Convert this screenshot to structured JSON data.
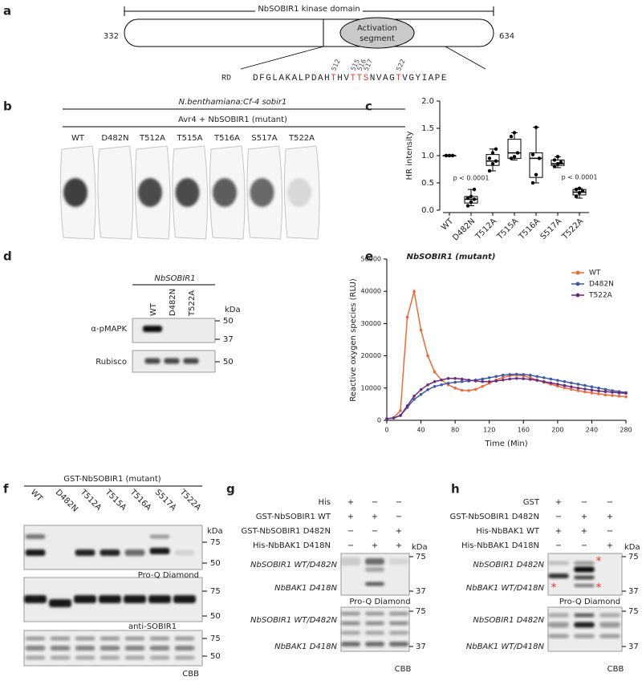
{
  "panels": {
    "a": {
      "label": "a",
      "title": "NbSOBIR1 kinase domain",
      "start": "332",
      "end": "634",
      "activation": [
        "Activation",
        "segment"
      ],
      "motif": "RD",
      "highlight_color": "#e03a2f",
      "sequence": [
        {
          "text": "DFGLAKALPDAH"
        },
        {
          "text": "T",
          "highlight": true,
          "sites": [
            "512"
          ]
        },
        {
          "text": "HV"
        },
        {
          "text": "TTS",
          "highlight": true,
          "sites": [
            "515",
            "516",
            "517"
          ]
        },
        {
          "text": "NVAG"
        },
        {
          "text": "T",
          "highlight": true,
          "sites": [
            "522"
          ]
        },
        {
          "text": "VGYIAPE"
        }
      ]
    },
    "b": {
      "label": "b",
      "genotype": "N.benthamiana:Cf-4 sobir1",
      "treatment": "Avr4 + NbSOBIR1 (mutant)",
      "lanes": [
        "WT",
        "D482N",
        "T512A",
        "T515A",
        "T516A",
        "S517A",
        "T522A"
      ]
    },
    "c": {
      "label": "c"
    },
    "d": {
      "label": "d",
      "construct": "NbSOBIR1",
      "lanes": [
        "WT",
        "D482N",
        "T522A"
      ],
      "kda": "kDa",
      "blots": [
        {
          "antibody": "α-pMAPK",
          "markers": [
            "50",
            "37"
          ]
        },
        {
          "antibody": "Rubisco",
          "markers": [
            "50"
          ]
        }
      ]
    },
    "e": {
      "label": "e"
    },
    "f": {
      "label": "f",
      "construct": "GST-NbSOBIR1 (mutant)",
      "lanes": [
        "WT",
        "D482N",
        "T512A",
        "T515A",
        "T516A",
        "S517A",
        "T522A"
      ],
      "kda": "kDa",
      "blots": [
        {
          "markers": [
            "75",
            "50"
          ],
          "stain": "Pro-Q Diamond"
        },
        {
          "markers": [
            "75",
            "50"
          ],
          "stain": "anti-SOBIR1"
        },
        {
          "markers": [
            "75",
            "50"
          ],
          "stain": "CBB"
        }
      ]
    },
    "g": {
      "label": "g",
      "kda": "kDa",
      "rows": [
        {
          "label": "His",
          "signs": [
            "+",
            "−",
            "−"
          ]
        },
        {
          "label": "GST-NbSOBIR1 WT",
          "signs": [
            "+",
            "+",
            "−"
          ]
        },
        {
          "label": "GST-NbSOBIR1 D482N",
          "signs": [
            "−",
            "−",
            "+"
          ]
        },
        {
          "label": "His-NbBAK1 D418N",
          "signs": [
            "−",
            "+",
            "+"
          ]
        }
      ],
      "blots": [
        {
          "bands": [
            "NbSOBIR1 WT/D482N",
            "NbBAK1 D418N"
          ],
          "markers": [
            "75",
            "37"
          ],
          "stain": "Pro-Q Diamond"
        },
        {
          "bands": [
            "NbSOBIR1 WT/D482N",
            "NbBAK1 D418N"
          ],
          "markers": [
            "75",
            "37"
          ],
          "stain": "CBB"
        }
      ]
    },
    "h": {
      "label": "h",
      "kda": "kDa",
      "asterisks": [
        "*",
        "*",
        "*"
      ],
      "asterisk_color": "#e03a2f",
      "rows": [
        {
          "label": "GST",
          "signs": [
            "+",
            "−",
            "−"
          ]
        },
        {
          "label": "GST-NbSOBIR1 D482N",
          "signs": [
            "−",
            "+",
            "+"
          ]
        },
        {
          "label": "His-NbBAK1 WT",
          "signs": [
            "+",
            "+",
            "−"
          ]
        },
        {
          "label": "His-NbBAK1 D418N",
          "signs": [
            "−",
            "−",
            "+"
          ]
        }
      ],
      "blots": [
        {
          "bands": [
            "NbSOBIR1 D482N",
            "NbBAK1 WT/D418N"
          ],
          "markers": [
            "75",
            "37"
          ],
          "stain": "Pro-Q Diamond"
        },
        {
          "bands": [
            "NbSOBIR1 D482N",
            "NbBAK1 WT/D418N"
          ],
          "markers": [
            "75",
            "37"
          ],
          "stain": "CBB"
        }
      ]
    }
  },
  "chart_data": [
    {
      "type": "box",
      "ylabel": "HR intensity",
      "color": "#000000",
      "categories": [
        "WT",
        "D482N",
        "T512A",
        "T515A",
        "T516A",
        "S517A",
        "T522A"
      ],
      "boxes": [
        {
          "min": 1,
          "q1": 1,
          "median": 1,
          "q3": 1,
          "max": 1,
          "points": [
            1,
            1,
            1,
            1,
            1,
            1
          ]
        },
        {
          "min": 0.08,
          "q1": 0.13,
          "median": 0.2,
          "q3": 0.25,
          "max": 0.38,
          "points": [
            0.08,
            0.15,
            0.2,
            0.22,
            0.25,
            0.38
          ],
          "annotation": "p < 0.0001"
        },
        {
          "min": 0.72,
          "q1": 0.82,
          "median": 0.9,
          "q3": 1.02,
          "max": 1.12,
          "points": [
            0.72,
            0.85,
            0.9,
            0.95,
            1.05,
            1.12
          ]
        },
        {
          "min": 0.92,
          "q1": 0.95,
          "median": 1.05,
          "q3": 1.3,
          "max": 1.42,
          "points": [
            0.95,
            0.98,
            1.05,
            1.35,
            1.42
          ]
        },
        {
          "min": 0.5,
          "q1": 0.6,
          "median": 0.95,
          "q3": 1.05,
          "max": 1.52,
          "points": [
            0.5,
            0.65,
            0.95,
            1.02,
            1.52
          ]
        },
        {
          "min": 0.78,
          "q1": 0.82,
          "median": 0.85,
          "q3": 0.92,
          "max": 0.98,
          "points": [
            0.8,
            0.85,
            0.88,
            0.92,
            0.98
          ]
        },
        {
          "min": 0.22,
          "q1": 0.28,
          "median": 0.33,
          "q3": 0.38,
          "max": 0.4,
          "points": [
            0.25,
            0.32,
            0.35,
            0.38,
            0.4
          ],
          "annotation": "p < 0.0001"
        }
      ],
      "ylim": [
        0,
        2
      ],
      "yticks": [
        {
          "value": 0,
          "label": "0.0"
        },
        0.5,
        {
          "value": 1,
          "label": "1.0"
        },
        1.5,
        {
          "value": 2,
          "label": "2.0"
        }
      ]
    },
    {
      "type": "line",
      "title": "NbSOBIR1 (mutant)",
      "ylabel": "Reactive oxygen species (RLU)",
      "xlabel": "Time (Min)",
      "legend": "upper right",
      "x": [
        0,
        8,
        16,
        24,
        32,
        40,
        48,
        56,
        64,
        72,
        80,
        88,
        96,
        104,
        112,
        120,
        128,
        136,
        144,
        152,
        160,
        168,
        176,
        184,
        192,
        200,
        208,
        216,
        224,
        232,
        240,
        248,
        256,
        264,
        272,
        280
      ],
      "series": [
        {
          "name": "WT",
          "color": "#ea6a3c",
          "values": [
            500,
            800,
            3000,
            32000,
            40000,
            28000,
            20000,
            15000,
            12500,
            11000,
            10000,
            9300,
            9200,
            9600,
            10500,
            11500,
            12500,
            13300,
            13800,
            14000,
            13800,
            13200,
            12500,
            11800,
            11200,
            10600,
            10100,
            9600,
            9200,
            8800,
            8500,
            8200,
            7900,
            7700,
            7500,
            7300
          ]
        },
        {
          "name": "D482N",
          "color": "#3c5aa8",
          "values": [
            500,
            700,
            1500,
            4000,
            6500,
            8000,
            9500,
            10500,
            11000,
            11500,
            11800,
            12000,
            12200,
            12500,
            12800,
            13200,
            13600,
            14000,
            14200,
            14300,
            14200,
            14000,
            13600,
            13200,
            12800,
            12400,
            12000,
            11600,
            11200,
            10800,
            10400,
            10000,
            9600,
            9200,
            8900,
            8600
          ]
        },
        {
          "name": "T522A",
          "color": "#6b2c7e",
          "values": [
            500,
            700,
            1500,
            4500,
            7500,
            9500,
            11000,
            12000,
            12500,
            13000,
            13000,
            12800,
            12500,
            12200,
            12000,
            12000,
            12200,
            12500,
            12800,
            13000,
            12900,
            12700,
            12400,
            12000,
            11600,
            11200,
            10800,
            10400,
            10000,
            9700,
            9400,
            9100,
            8900,
            8700,
            8500,
            8400
          ]
        }
      ],
      "xlim": [
        0,
        280
      ],
      "xticks": [
        0,
        40,
        80,
        120,
        160,
        200,
        240,
        280
      ],
      "ylim": [
        0,
        50000
      ],
      "yticks": [
        0,
        10000,
        20000,
        30000,
        40000,
        50000
      ]
    }
  ]
}
